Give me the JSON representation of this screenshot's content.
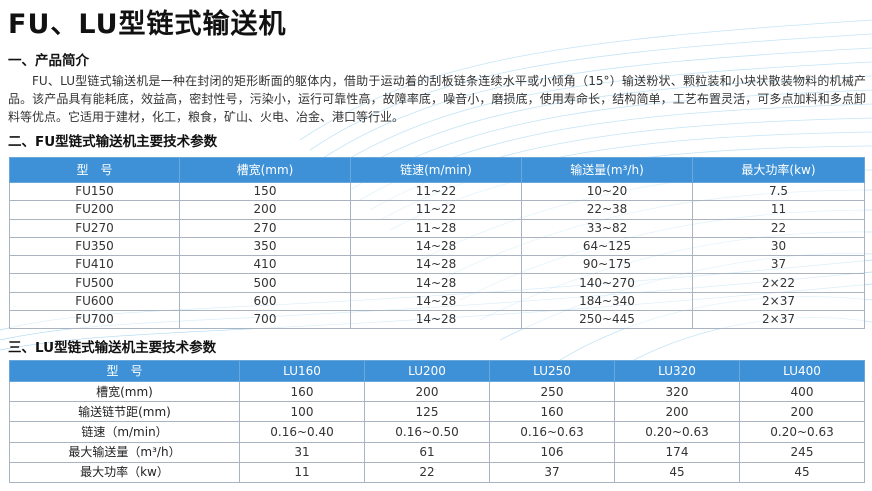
{
  "title": "FU、LU型链式输送机",
  "section1": {
    "heading": "一、产品简介",
    "text": "FU、LU型链式输送机是一种在封闭的矩形断面的躯体内，借助于运动着的刮板链条连续水平或小倾角（15°）输送粉状、颗粒装和小块状散装物料的机械产品。该产品具有能耗底，效益高，密封性号，污染小，运行可靠性高，故障率底，噪音小，磨损底，使用寿命长，结构简单，工艺布置灵活，可多点加料和多点卸料等优点。它适用于建材，化工，粮食，矿山、火电、冶金、港口等行业。"
  },
  "section2": {
    "heading": "二、FU型链式输送机主要技术参数",
    "headers": [
      "型　号",
      "槽宽(mm)",
      "链速(m/min)",
      "输送量(m³/h)",
      "最大功率(kw)"
    ],
    "rows": [
      [
        "FU150",
        "150",
        "11~22",
        "10~20",
        "7.5"
      ],
      [
        "FU200",
        "200",
        "11~22",
        "22~38",
        "11"
      ],
      [
        "FU270",
        "270",
        "11~28",
        "33~82",
        "22"
      ],
      [
        "FU350",
        "350",
        "14~28",
        "64~125",
        "30"
      ],
      [
        "FU410",
        "410",
        "14~28",
        "90~175",
        "37"
      ],
      [
        "FU500",
        "500",
        "14~28",
        "140~270",
        "2×22"
      ],
      [
        "FU600",
        "600",
        "14~28",
        "184~340",
        "2×37"
      ],
      [
        "FU700",
        "700",
        "14~28",
        "250~445",
        "2×37"
      ]
    ]
  },
  "section3": {
    "heading": "三、LU型链式输送机主要技术参数",
    "headers": [
      "型　号",
      "LU160",
      "LU200",
      "LU250",
      "LU320",
      "LU400"
    ],
    "rows": [
      [
        "槽宽(mm)",
        "160",
        "200",
        "250",
        "320",
        "400"
      ],
      [
        "输送链节距(mm)",
        "100",
        "125",
        "160",
        "200",
        "200"
      ],
      [
        "链速（m/min）",
        "0.16~0.40",
        "0.16~0.50",
        "0.16~0.63",
        "0.20~0.63",
        "0.20~0.63"
      ],
      [
        "最大输送量（m³/h）",
        "31",
        "61",
        "106",
        "174",
        "245"
      ],
      [
        "最大功率（kw）",
        "11",
        "22",
        "37",
        "45",
        "45"
      ]
    ]
  },
  "colors": {
    "table_header": "#3e91d6",
    "wave": "#9fd3f0"
  }
}
